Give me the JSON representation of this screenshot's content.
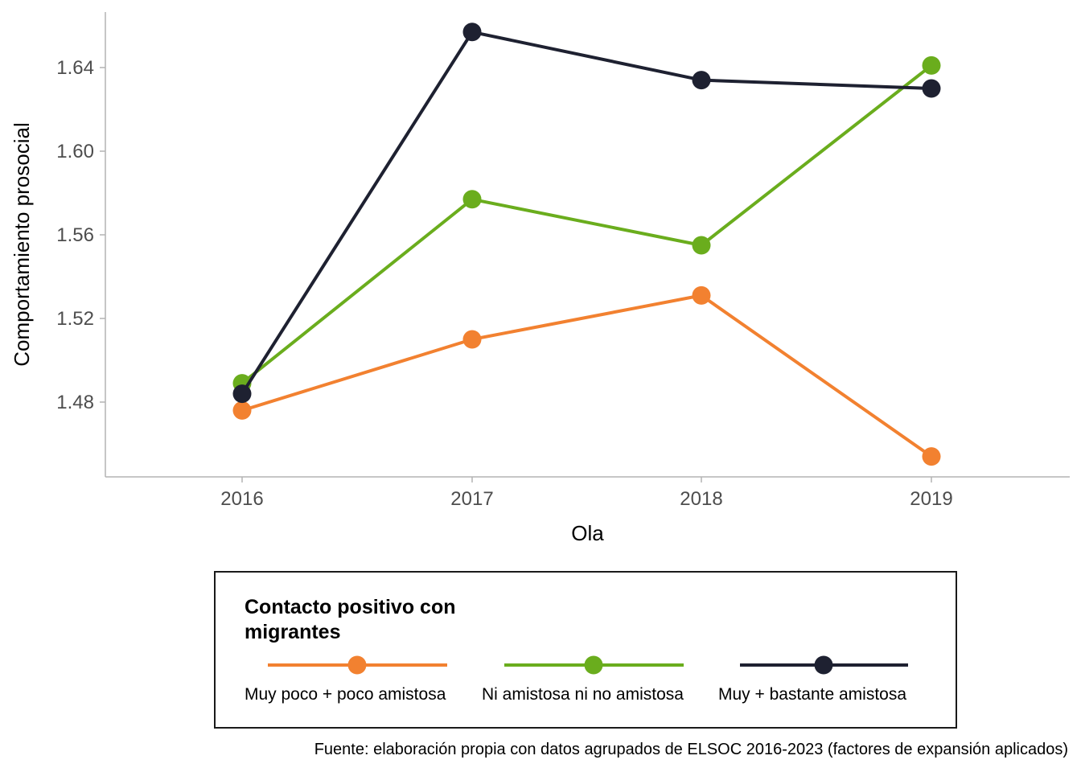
{
  "chart_data": {
    "type": "line",
    "x": [
      "2016",
      "2017",
      "2018",
      "2019"
    ],
    "xlabel": "Ola",
    "ylabel": "Comportamiento prosocial",
    "yticks": [
      "1.48",
      "1.52",
      "1.56",
      "1.60",
      "1.64"
    ],
    "ylim": [
      1.445,
      1.666
    ],
    "grid": false,
    "legend": {
      "title": "Contacto positivo con migrantes",
      "placement": "bottom"
    },
    "series": [
      {
        "name": "Muy poco + poco amistosa",
        "color": "#F28130",
        "values": [
          1.476,
          1.51,
          1.531,
          1.454
        ]
      },
      {
        "name": "Ni amistosa ni no amistosa",
        "color": "#6AAD1D",
        "values": [
          1.489,
          1.577,
          1.555,
          1.641
        ]
      },
      {
        "name": "Muy + bastante amistosa",
        "color": "#1E2131",
        "values": [
          1.484,
          1.657,
          1.634,
          1.63
        ]
      }
    ],
    "caption": "Fuente: elaboración propia con datos agrupados de ELSOC 2016-2023 (factores de expansión aplicados)"
  }
}
